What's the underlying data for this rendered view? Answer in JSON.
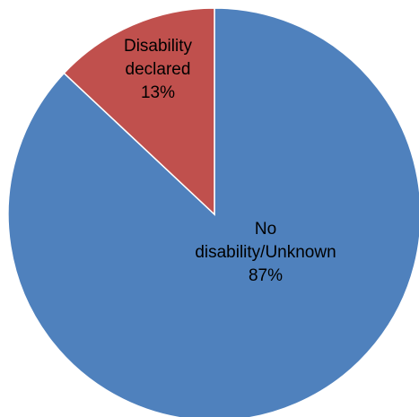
{
  "chart_data": {
    "type": "pie",
    "title": "",
    "start_angle_deg": 0,
    "direction": "clockwise",
    "slices": [
      {
        "name": "No disability/Unknown",
        "value": 87,
        "label_lines": [
          "No",
          "disability/Unknown",
          "87%"
        ],
        "color": "#4F81BD"
      },
      {
        "name": "Disability declared",
        "value": 13,
        "label_lines": [
          "Disability",
          "declared",
          "13%"
        ],
        "color": "#C0504D"
      }
    ],
    "stroke_color": "#FFFFFF",
    "legend": "none"
  }
}
